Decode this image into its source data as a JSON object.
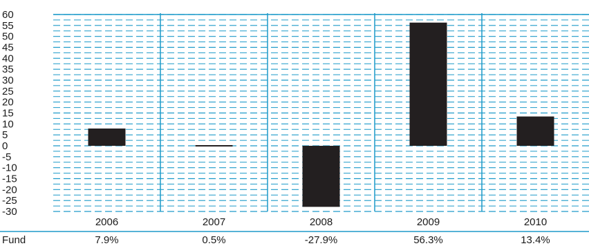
{
  "chart_data": {
    "type": "bar",
    "categories": [
      "2006",
      "2007",
      "2008",
      "2009",
      "2010"
    ],
    "series": [
      {
        "values": [
          7.9,
          0.5,
          -27.9,
          56.3,
          13.4
        ]
      }
    ],
    "ylim": [
      -30,
      60
    ],
    "yticks": [
      60,
      55,
      50,
      45,
      40,
      35,
      30,
      25,
      20,
      15,
      10,
      5,
      0,
      -5,
      -10,
      -15,
      -20,
      -25,
      -30
    ],
    "title": "",
    "xlabel": "",
    "ylabel": "",
    "grid": true
  },
  "data_table": {
    "row_label": "Fund",
    "values": [
      "7.9%",
      "0.5%",
      "-27.9%",
      "56.3%",
      "13.4%"
    ]
  },
  "colors": {
    "bar": "#231f20",
    "grid": "#1d9ac9",
    "text": "#1a1a1a"
  }
}
